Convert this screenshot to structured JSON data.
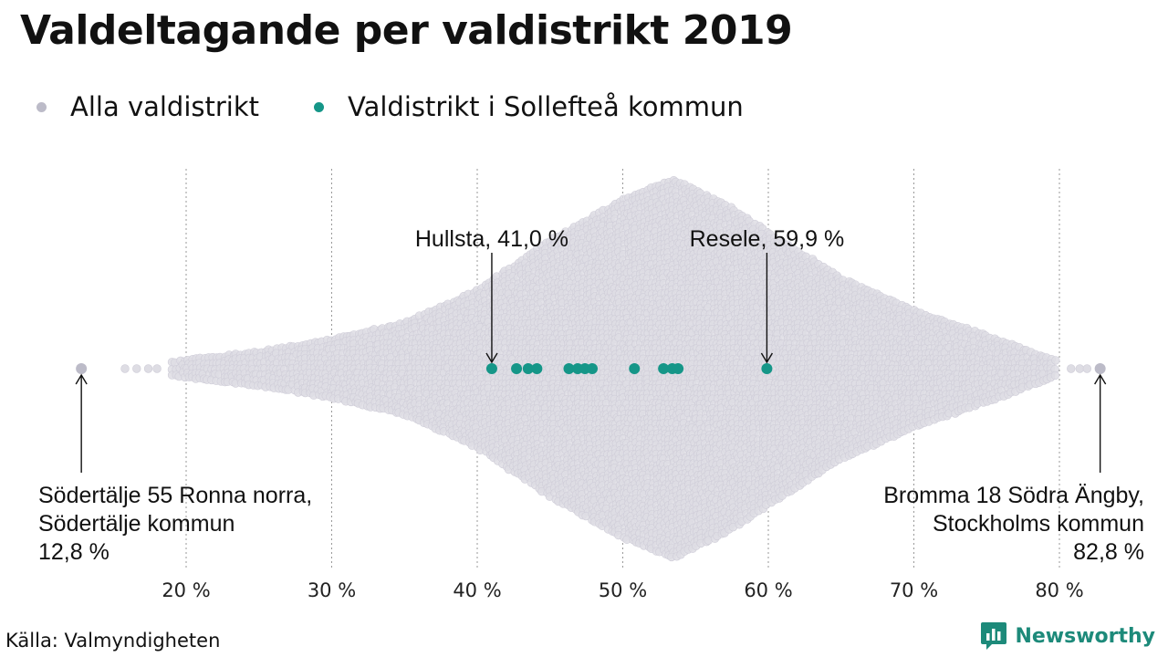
{
  "title": "Valdeltagande per valdistrikt 2019",
  "colors": {
    "all": "#bcbbc8",
    "all_fill": "#dedde4",
    "highlight": "#159688",
    "brand": "#1d8a7a"
  },
  "legend": [
    {
      "label": "Alla valdistrikt",
      "color": "#bcbbc8"
    },
    {
      "label": "Valdistrikt i Sollefteå kommun",
      "color": "#159688"
    }
  ],
  "source": "Källa: Valmyndigheten",
  "brand": {
    "name": "Newsworthy",
    "icon": "bar-chart-logo-icon"
  },
  "chart_data": {
    "type": "scatter",
    "title": "Valdeltagande per valdistrikt 2019",
    "xlabel": "",
    "ylabel": "",
    "xlim": [
      12,
      84
    ],
    "x_ticks": [
      20,
      30,
      40,
      50,
      60,
      70,
      80
    ],
    "x_tick_labels": [
      "20 %",
      "30 %",
      "40 %",
      "50 %",
      "60 %",
      "70 %",
      "80 %"
    ],
    "grid": "vertical dotted",
    "legend_position": "top-left",
    "series": [
      {
        "name": "Alla valdistrikt",
        "color": "#bcbbc8",
        "distribution_profile": [
          {
            "x": 12.8,
            "count": 1
          },
          {
            "x": 16.0,
            "count": 1
          },
          {
            "x": 18.0,
            "count": 2
          },
          {
            "x": 20.0,
            "count": 4
          },
          {
            "x": 25.0,
            "count": 8
          },
          {
            "x": 30.0,
            "count": 14
          },
          {
            "x": 35.0,
            "count": 22
          },
          {
            "x": 40.0,
            "count": 38
          },
          {
            "x": 45.0,
            "count": 62
          },
          {
            "x": 50.0,
            "count": 82
          },
          {
            "x": 53.5,
            "count": 92
          },
          {
            "x": 57.0,
            "count": 80
          },
          {
            "x": 60.0,
            "count": 66
          },
          {
            "x": 65.0,
            "count": 44
          },
          {
            "x": 70.0,
            "count": 28
          },
          {
            "x": 75.0,
            "count": 16
          },
          {
            "x": 78.0,
            "count": 8
          },
          {
            "x": 80.0,
            "count": 3
          },
          {
            "x": 82.8,
            "count": 1
          }
        ]
      },
      {
        "name": "Valdistrikt i Sollefteå kommun",
        "color": "#159688",
        "x": [
          41.0,
          42.7,
          43.5,
          44.1,
          46.3,
          46.9,
          47.4,
          47.9,
          50.8,
          52.8,
          53.4,
          53.8,
          59.9
        ]
      }
    ],
    "extremes": [
      {
        "name": "Södertälje 55 Ronna norra",
        "x": 12.8
      },
      {
        "name": "Bromma 18 Södra Ängby",
        "x": 82.8
      }
    ],
    "annotations": [
      {
        "lines": [
          "Hullsta, 41,0 %"
        ],
        "x": 41.0,
        "position": "above",
        "align": "center"
      },
      {
        "lines": [
          "Resele, 59,9 %"
        ],
        "x": 59.9,
        "position": "above",
        "align": "center"
      },
      {
        "lines": [
          "Södertälje 55 Ronna norra,",
          "Södertälje kommun",
          "12,8 %"
        ],
        "x": 12.8,
        "position": "below",
        "align": "start"
      },
      {
        "lines": [
          "Bromma 18 Södra Ängby,",
          "Stockholms kommun",
          "82,8 %"
        ],
        "x": 82.8,
        "position": "below",
        "align": "end"
      }
    ]
  }
}
